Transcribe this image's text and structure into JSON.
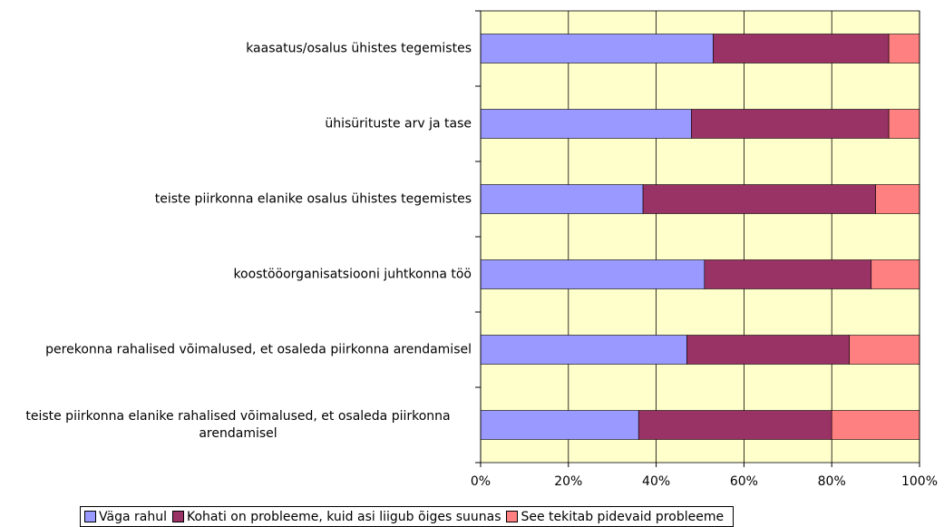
{
  "chart_data": {
    "type": "stacked_barh",
    "categories": [
      "kaasatus/osalus ühistes tegemistes",
      "ühisürituste arv ja tase",
      "teiste piirkonna elanike osalus ühistes tegemistes",
      "koostööorganisatsiooni juhtkonna töö",
      "perekonna rahalised võimalused, et osaleda piirkonna arendamisel",
      "teiste piirkonna elanike rahalised võimalused, et osaleda piirkonna arendamisel"
    ],
    "series": [
      {
        "name": "Väga rahul",
        "color": "#9999ff",
        "values": [
          53,
          48,
          37,
          51,
          47,
          36
        ]
      },
      {
        "name": "Kohati on probleeme, kuid asi liigub õiges suunas",
        "color": "#993366",
        "values": [
          40,
          45,
          53,
          38,
          37,
          44
        ]
      },
      {
        "name": "See tekitab pidevaid probleeme",
        "color": "#ff8080",
        "values": [
          7,
          7,
          10,
          11,
          16,
          20
        ]
      }
    ],
    "xlim": [
      0,
      100
    ],
    "xticks": [
      {
        "value": 0,
        "label": "0%"
      },
      {
        "value": 20,
        "label": "20%"
      },
      {
        "value": 40,
        "label": "40%"
      },
      {
        "value": 60,
        "label": "60%"
      },
      {
        "value": 80,
        "label": "80%"
      },
      {
        "value": 100,
        "label": "100%"
      }
    ],
    "grid": true,
    "legend": "bottom"
  }
}
